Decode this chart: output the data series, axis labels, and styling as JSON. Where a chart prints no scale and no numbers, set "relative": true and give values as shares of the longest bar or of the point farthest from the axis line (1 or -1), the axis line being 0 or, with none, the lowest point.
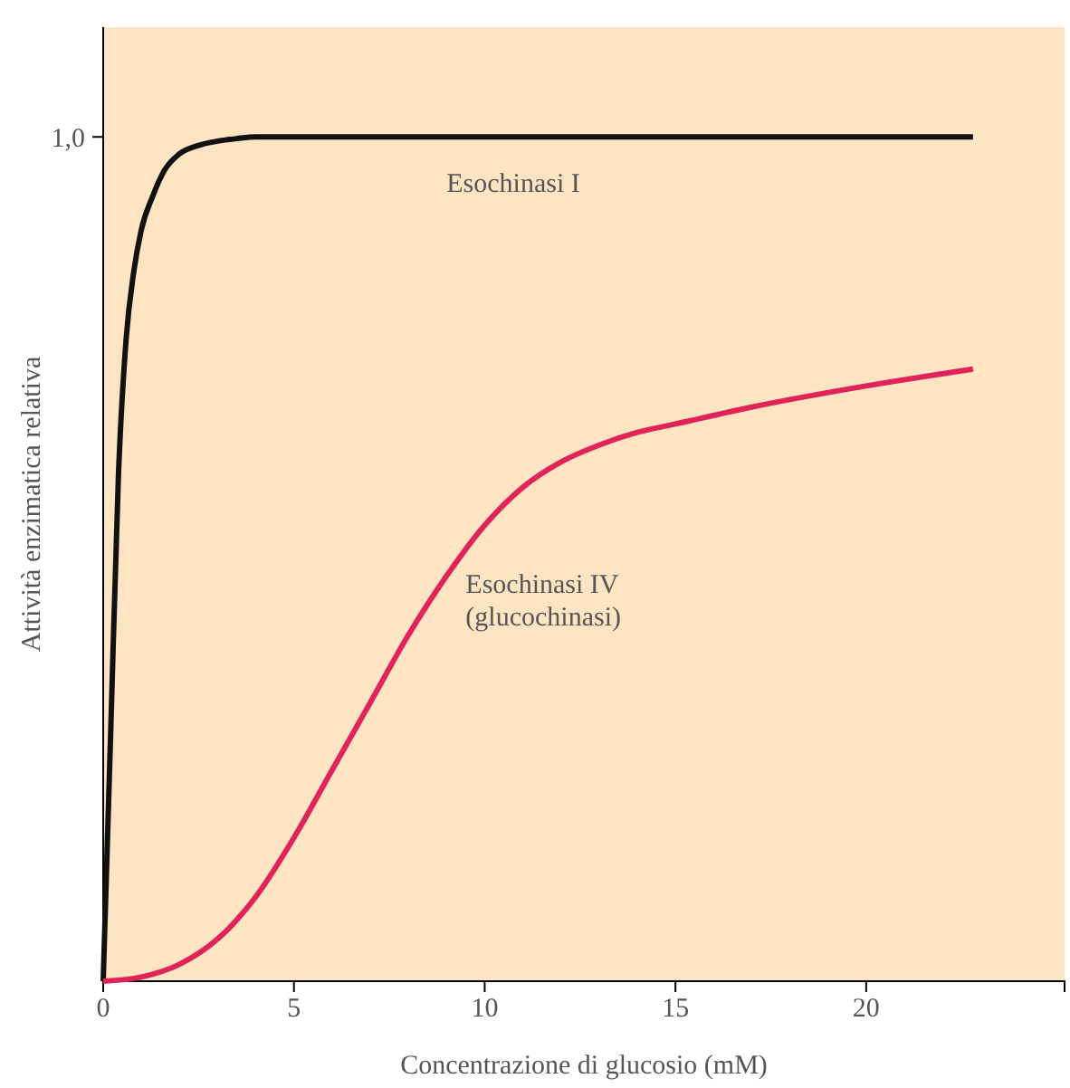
{
  "chart_data": {
    "type": "line",
    "xlabel": "Concentrazione di glucosio (mM)",
    "ylabel": "Attività enzimatica relativa",
    "relative": true,
    "xlim": [
      0,
      25.2
    ],
    "xticks": [
      0,
      5,
      10,
      15,
      20
    ],
    "annotations": [
      "1,0"
    ],
    "grid": false,
    "marker": "none",
    "line_style": "solid",
    "series": [
      {
        "name": "Esochinasi I",
        "color": "#111111",
        "x": [
          0,
          0.2,
          0.4,
          0.6,
          0.8,
          1,
          1.3,
          1.6,
          2,
          2.5,
          3,
          3.5,
          4,
          6,
          10,
          15,
          20,
          22.8
        ],
        "values": [
          0,
          0.3,
          0.6,
          0.76,
          0.84,
          0.89,
          0.93,
          0.96,
          0.98,
          0.99,
          0.995,
          0.998,
          1,
          1,
          1,
          1,
          1,
          1
        ]
      },
      {
        "name": "Esochinasi IV (glucochinasi)",
        "color": "#e0245a",
        "x": [
          0,
          1,
          2,
          3,
          4,
          5,
          6,
          7,
          8,
          9,
          10,
          11,
          12,
          13,
          14,
          15,
          17,
          20,
          22.8
        ],
        "values": [
          0,
          0.005,
          0.02,
          0.05,
          0.1,
          0.17,
          0.25,
          0.33,
          0.41,
          0.48,
          0.54,
          0.585,
          0.615,
          0.635,
          0.65,
          0.66,
          0.68,
          0.705,
          0.725
        ]
      }
    ]
  }
}
